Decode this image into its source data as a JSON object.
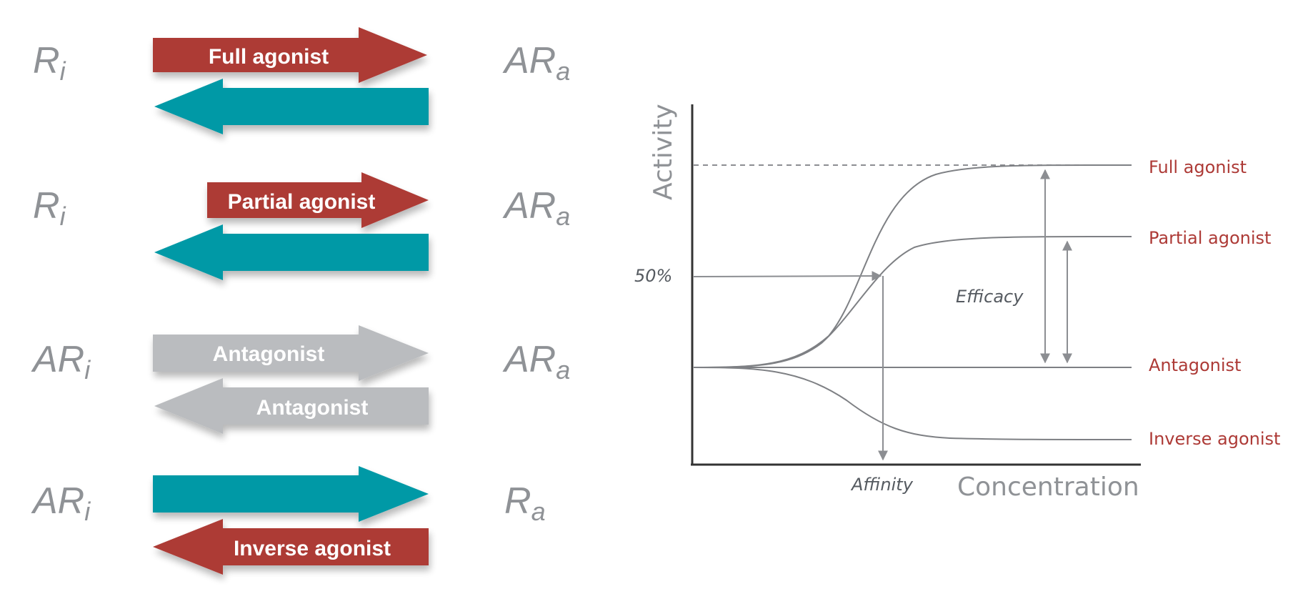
{
  "colors": {
    "agonist": "#ad3a36",
    "reverse": "#0499a6",
    "antagonist": "#babcbf",
    "state_text": "#8f9296",
    "curve": "#7e8084",
    "curve_label": "#ad3a36",
    "axis": "#333333"
  },
  "equilibria": [
    {
      "left": {
        "base": "R",
        "sub": "i"
      },
      "right": {
        "base": "AR",
        "sub": "a"
      },
      "forward": {
        "label": "Full agonist",
        "color": "agonist"
      },
      "backward": {
        "label": "",
        "color": "reverse"
      }
    },
    {
      "left": {
        "base": "R",
        "sub": "i"
      },
      "right": {
        "base": "AR",
        "sub": "a"
      },
      "forward": {
        "label": "Partial agonist",
        "color": "agonist"
      },
      "backward": {
        "label": "",
        "color": "reverse"
      }
    },
    {
      "left": {
        "base": "AR",
        "sub": "i"
      },
      "right": {
        "base": "AR",
        "sub": "a"
      },
      "forward": {
        "label": "Antagonist",
        "color": "antagonist"
      },
      "backward": {
        "label": "Antagonist",
        "color": "antagonist"
      }
    },
    {
      "left": {
        "base": "AR",
        "sub": "i"
      },
      "right": {
        "base": "R",
        "sub": "a"
      },
      "forward": {
        "label": "",
        "color": "reverse"
      },
      "backward": {
        "label": "Inverse agonist",
        "color": "agonist"
      }
    }
  ],
  "plot": {
    "y_axis_label": "Activity",
    "x_axis_label": "Concentration",
    "half_max_label": "50%",
    "efficacy_label": "Efficacy",
    "affinity_label": "Affinity",
    "curves": [
      {
        "name": "Full agonist",
        "plateau": 1.0
      },
      {
        "name": "Partial agonist",
        "plateau": 0.6
      },
      {
        "name": "Antagonist",
        "plateau": 0.0
      },
      {
        "name": "Inverse agonist",
        "plateau": -0.34
      }
    ]
  }
}
